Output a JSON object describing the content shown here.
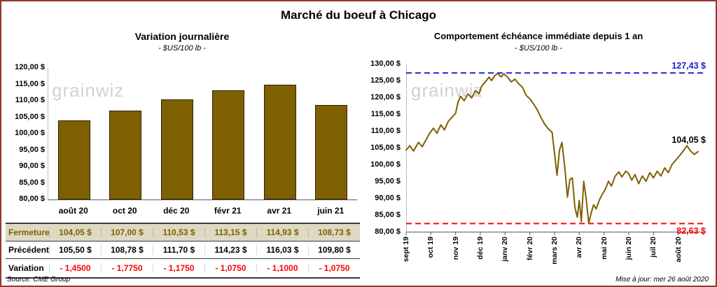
{
  "page": {
    "title": "Marché du boeuf à Chicago",
    "source": "Source: CME Group",
    "updated": "Mise à jour: mer 26 août 2020",
    "border_color": "#943634"
  },
  "watermark": "grainwiz",
  "chart_data": [
    {
      "type": "bar",
      "title": "Variation journalière",
      "subtitle": "- $US/100 lb -",
      "categories": [
        "août 20",
        "oct 20",
        "déc 20",
        "févr 21",
        "avr 21",
        "juin 21"
      ],
      "values": [
        104.05,
        107.0,
        110.53,
        113.15,
        114.93,
        108.73
      ],
      "ylim": [
        80,
        120
      ],
      "ytick_step": 5,
      "y_ticks": [
        "120,00 $",
        "115,00 $",
        "110,00 $",
        "105,00 $",
        "100,00 $",
        "95,00 $",
        "90,00 $",
        "85,00 $",
        "80,00 $"
      ],
      "bar_color": "#7F6000",
      "grid": false,
      "legend": "none"
    },
    {
      "type": "line",
      "title": "Comportement échéance immédiate depuis 1 an",
      "subtitle": "- $US/100 lb -",
      "x_labels": [
        "sept 19",
        "oct 19",
        "nov 19",
        "déc 19",
        "janv 20",
        "févr 20",
        "mars 20",
        "avr 20",
        "mai 20",
        "juin 20",
        "juil 20",
        "août 20"
      ],
      "ylim": [
        80,
        130
      ],
      "ytick_step": 5,
      "y_ticks": [
        "130,00 $",
        "125,00 $",
        "120,00 $",
        "115,00 $",
        "110,00 $",
        "105,00 $",
        "100,00 $",
        "95,00 $",
        "90,00 $",
        "85,00 $",
        "80,00 $"
      ],
      "line_color": "#7F6000",
      "high_line": {
        "value": 127.43,
        "label": "127,43 $",
        "color": "#2121CE",
        "style": "dashed"
      },
      "low_line": {
        "value": 82.63,
        "label": "82,63 $",
        "color": "#FF0000",
        "style": "dashed"
      },
      "last_value": 104.05,
      "last_label": "104,05 $",
      "grid": false,
      "legend": "none",
      "points": [
        [
          0.0,
          104.5
        ],
        [
          0.15,
          105.8
        ],
        [
          0.3,
          104.2
        ],
        [
          0.5,
          106.8
        ],
        [
          0.65,
          105.5
        ],
        [
          0.8,
          107.5
        ],
        [
          0.95,
          109.5
        ],
        [
          1.1,
          111.0
        ],
        [
          1.25,
          109.5
        ],
        [
          1.4,
          112.0
        ],
        [
          1.55,
          110.5
        ],
        [
          1.7,
          113.0
        ],
        [
          1.85,
          114.2
        ],
        [
          2.0,
          115.5
        ],
        [
          2.1,
          118.8
        ],
        [
          2.2,
          120.5
        ],
        [
          2.35,
          119.2
        ],
        [
          2.5,
          121.2
        ],
        [
          2.65,
          120.0
        ],
        [
          2.8,
          122.2
        ],
        [
          2.95,
          121.2
        ],
        [
          3.05,
          123.5
        ],
        [
          3.2,
          124.8
        ],
        [
          3.35,
          126.2
        ],
        [
          3.45,
          125.2
        ],
        [
          3.6,
          126.8
        ],
        [
          3.7,
          127.3
        ],
        [
          3.85,
          126.3
        ],
        [
          3.95,
          127.2
        ],
        [
          4.1,
          126.2
        ],
        [
          4.25,
          124.8
        ],
        [
          4.4,
          125.6
        ],
        [
          4.55,
          124.2
        ],
        [
          4.7,
          123.2
        ],
        [
          4.85,
          120.8
        ],
        [
          5.0,
          119.8
        ],
        [
          5.15,
          118.2
        ],
        [
          5.3,
          116.5
        ],
        [
          5.45,
          114.2
        ],
        [
          5.6,
          112.2
        ],
        [
          5.75,
          110.8
        ],
        [
          5.9,
          109.8
        ],
        [
          6.0,
          103.5
        ],
        [
          6.1,
          97.0
        ],
        [
          6.2,
          104.5
        ],
        [
          6.3,
          106.8
        ],
        [
          6.42,
          99.0
        ],
        [
          6.52,
          90.5
        ],
        [
          6.62,
          95.8
        ],
        [
          6.72,
          96.2
        ],
        [
          6.82,
          87.5
        ],
        [
          6.92,
          84.5
        ],
        [
          7.0,
          89.5
        ],
        [
          7.08,
          83.2
        ],
        [
          7.18,
          95.2
        ],
        [
          7.28,
          90.0
        ],
        [
          7.38,
          82.7
        ],
        [
          7.48,
          85.8
        ],
        [
          7.58,
          88.2
        ],
        [
          7.68,
          87.0
        ],
        [
          7.82,
          89.8
        ],
        [
          7.92,
          91.2
        ],
        [
          8.05,
          92.8
        ],
        [
          8.18,
          95.2
        ],
        [
          8.3,
          93.8
        ],
        [
          8.45,
          96.8
        ],
        [
          8.6,
          98.0
        ],
        [
          8.72,
          96.5
        ],
        [
          8.88,
          98.2
        ],
        [
          9.0,
          97.5
        ],
        [
          9.12,
          95.5
        ],
        [
          9.25,
          97.2
        ],
        [
          9.4,
          94.5
        ],
        [
          9.55,
          96.8
        ],
        [
          9.7,
          95.2
        ],
        [
          9.85,
          97.8
        ],
        [
          10.0,
          96.2
        ],
        [
          10.15,
          98.2
        ],
        [
          10.3,
          96.8
        ],
        [
          10.45,
          99.2
        ],
        [
          10.6,
          97.8
        ],
        [
          10.75,
          100.2
        ],
        [
          10.9,
          101.5
        ],
        [
          11.05,
          102.8
        ],
        [
          11.2,
          104.2
        ],
        [
          11.35,
          105.8
        ],
        [
          11.5,
          104.2
        ],
        [
          11.65,
          103.2
        ],
        [
          11.8,
          104.05
        ]
      ]
    }
  ],
  "table": {
    "rows": [
      {
        "style": "fermeture",
        "label": "Fermeture",
        "values": [
          "104,05  $",
          "107,00  $",
          "110,53  $",
          "113,15  $",
          "114,93  $",
          "108,73  $"
        ]
      },
      {
        "style": "precedent",
        "label": "Précédent",
        "values": [
          "105,50  $",
          "108,78  $",
          "111,70  $",
          "114,23  $",
          "116,03  $",
          "109,80  $"
        ]
      },
      {
        "style": "variation",
        "label": "Variation",
        "values": [
          "- 1,4500",
          "- 1,7750",
          "- 1,1750",
          "- 1,0750",
          "- 1,1000",
          "- 1,0750"
        ]
      }
    ]
  }
}
